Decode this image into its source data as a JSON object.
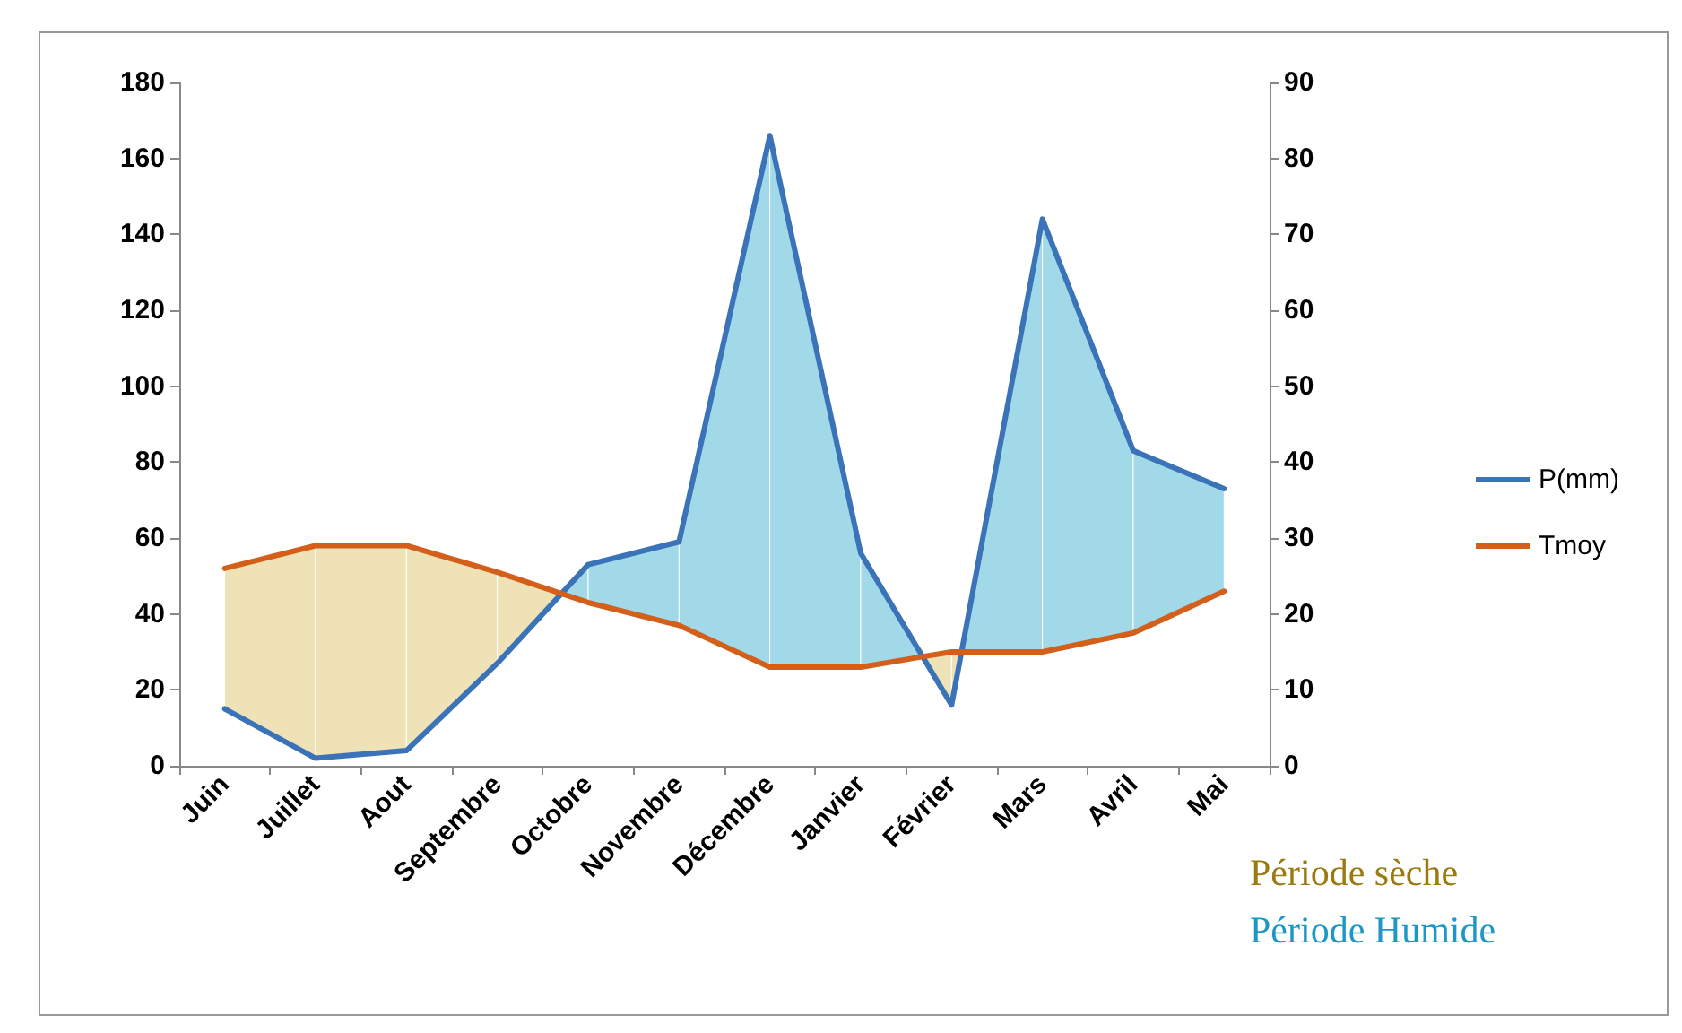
{
  "chart_data": {
    "type": "line",
    "categories": [
      "Juin",
      "Juillet",
      "Aout",
      "Septembre",
      "Octobre",
      "Novembre",
      "Décembre",
      "Janvier",
      "Février",
      "Mars",
      "Avril",
      "Mai"
    ],
    "series": [
      {
        "name": "P(mm)",
        "color": "#3a73b8",
        "values": [
          15,
          2,
          4,
          27,
          53,
          59,
          166,
          56,
          16,
          144,
          83,
          73
        ]
      },
      {
        "name": "Tmoy",
        "color": "#d35f1a",
        "axis": "y2",
        "values": [
          26,
          29,
          29,
          25.5,
          21.5,
          18.5,
          13,
          13,
          15,
          15,
          17.5,
          23
        ]
      }
    ],
    "ylim": [
      0,
      180
    ],
    "yticks": [
      0,
      20,
      40,
      60,
      80,
      100,
      120,
      140,
      160,
      180
    ],
    "y2lim": [
      0,
      90
    ],
    "y2ticks": [
      0,
      10,
      20,
      30,
      40,
      50,
      60,
      70,
      80,
      90
    ],
    "annotations": [
      "Période sèche",
      "Période Humide"
    ],
    "legend": "right",
    "grid": false,
    "marker": "none",
    "line_style": "solid"
  }
}
